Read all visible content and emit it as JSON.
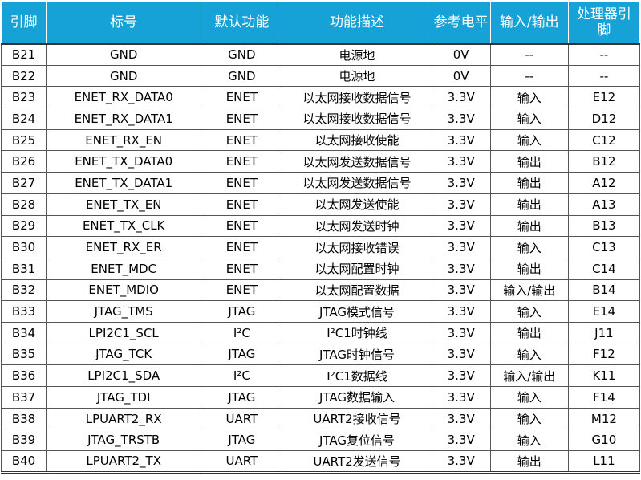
{
  "headers": [
    "引脚",
    "标号",
    "默认功能",
    "功能描述",
    "参考电平",
    "输入/输出",
    "处理器引脚"
  ],
  "rows": [
    [
      "B21",
      "GND",
      "GND",
      "电源地",
      "0V",
      "--",
      "--"
    ],
    [
      "B22",
      "GND",
      "GND",
      "电源地",
      "0V",
      "--",
      "--"
    ],
    [
      "B23",
      "ENET_RX_DATA0",
      "ENET",
      "以太网接收数据信号",
      "3.3V",
      "输入",
      "E12"
    ],
    [
      "B24",
      "ENET_RX_DATA1",
      "ENET",
      "以太网接收数据信号",
      "3.3V",
      "输入",
      "D12"
    ],
    [
      "B25",
      "ENET_RX_EN",
      "ENET",
      "以太网接收使能",
      "3.3V",
      "输入",
      "C12"
    ],
    [
      "B26",
      "ENET_TX_DATA0",
      "ENET",
      "以太网发送数据信号",
      "3.3V",
      "输出",
      "B12"
    ],
    [
      "B27",
      "ENET_TX_DATA1",
      "ENET",
      "以太网发送数据信号",
      "3.3V",
      "输出",
      "A12"
    ],
    [
      "B28",
      "ENET_TX_EN",
      "ENET",
      "以太网发送使能",
      "3.3V",
      "输出",
      "A13"
    ],
    [
      "B29",
      "ENET_TX_CLK",
      "ENET",
      "以太网发送时钟",
      "3.3V",
      "输出",
      "B13"
    ],
    [
      "B30",
      "ENET_RX_ER",
      "ENET",
      "以太网接收错误",
      "3.3V",
      "输入",
      "C13"
    ],
    [
      "B31",
      "ENET_MDC",
      "ENET",
      "以太网配置时钟",
      "3.3V",
      "输出",
      "C14"
    ],
    [
      "B32",
      "ENET_MDIO",
      "ENET",
      "以太网配置数据",
      "3.3V",
      "输入/输出",
      "B14"
    ],
    [
      "B33",
      "JTAG_TMS",
      "JTAG",
      "JTAG模式信号",
      "3.3V",
      "输入",
      "E14"
    ],
    [
      "B34",
      "LPI2C1_SCL",
      "I²C",
      "I²C1时钟线",
      "3.3V",
      "输出",
      "J11"
    ],
    [
      "B35",
      "JTAG_TCK",
      "JTAG",
      "JTAG时钟信号",
      "3.3V",
      "输入",
      "F12"
    ],
    [
      "B36",
      "LPI2C1_SDA",
      "I²C",
      "I²C1数据线",
      "3.3V",
      "输入/输出",
      "K11"
    ],
    [
      "B37",
      "JTAG_TDI",
      "JTAG",
      "JTAG数据输入",
      "3.3V",
      "输入",
      "F14"
    ],
    [
      "B38",
      "LPUART2_RX",
      "UART",
      "UART2接收信号",
      "3.3V",
      "输入",
      "M12"
    ],
    [
      "B39",
      "JTAG_TRSTB",
      "JTAG",
      "JTAG复位信号",
      "3.3V",
      "输入",
      "G10"
    ],
    [
      "B40",
      "LPUART2_TX",
      "UART",
      "UART2发送信号",
      "3.3V",
      "输出",
      "L11"
    ]
  ],
  "colors": {
    "header_bg": "#16a2d6",
    "header_text": "#ffffff"
  }
}
